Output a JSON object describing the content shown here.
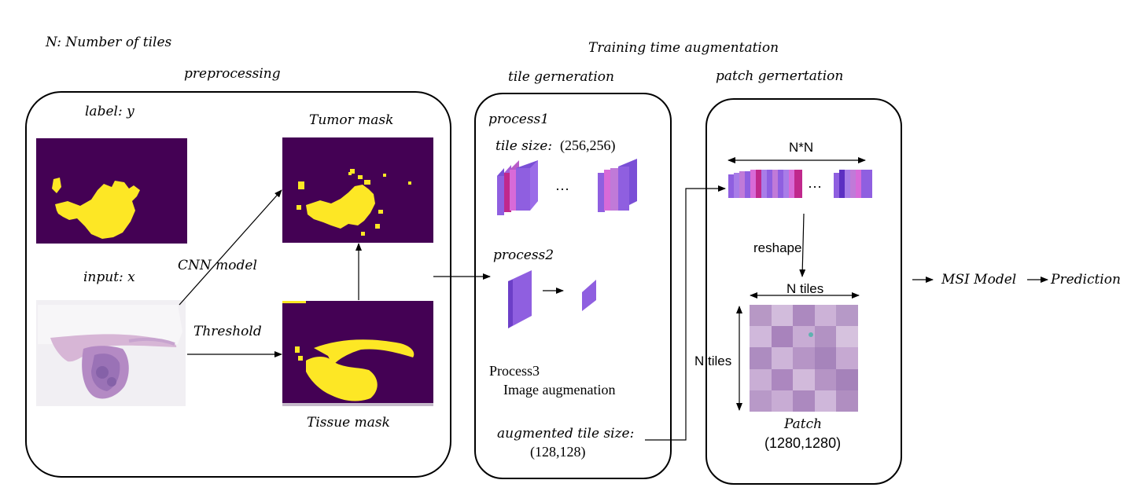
{
  "legend_note": "N: Number of tiles",
  "sections": {
    "preprocessing": "preprocessing",
    "training_aug": "Training time augmentation",
    "tile_generation": "tile gerneration",
    "patch_generation": "patch gernertation"
  },
  "preprocessing": {
    "label_y": "label: y",
    "input_x": "input: x",
    "tumor_mask": "Tumor mask",
    "tissue_mask": "Tissue mask",
    "cnn_model": "CNN model",
    "threshold": "Threshold"
  },
  "tile_gen": {
    "process1": "process1",
    "tile_size_label": "tile size:",
    "tile_size_value": "(256,256)",
    "ellipsis": "…",
    "process2": "process2",
    "process3": "Process3",
    "image_aug": "Image augmenation",
    "aug_tile_size": "augmented tile size:",
    "aug_tile_value": "(128,128)"
  },
  "patch_gen": {
    "nxn": "N*N",
    "ellipsis": "…",
    "reshape": "reshape",
    "n_tiles_h": "N tiles",
    "n_tiles_v": "N tiles",
    "patch": "Patch",
    "patch_size": "(1280,1280)"
  },
  "outputs": {
    "msi_model": "MSI Model",
    "prediction": "Prediction"
  },
  "colors": {
    "mask_bg": "#440154",
    "mask_fg": "#fde725",
    "tile_purple": "#8f5fe0",
    "tile_magenta": "#c0288c",
    "tile_pink": "#d86ad8"
  }
}
